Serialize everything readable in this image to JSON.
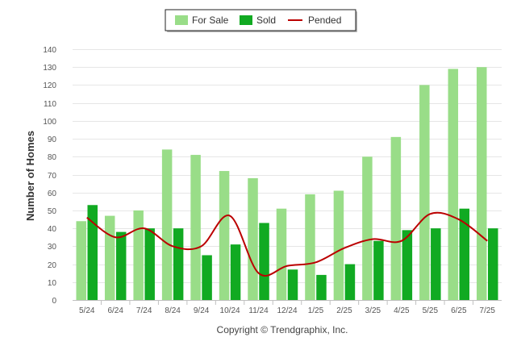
{
  "chart_data": {
    "type": "bar",
    "categories": [
      "5/24",
      "6/24",
      "7/24",
      "8/24",
      "9/24",
      "10/24",
      "11/24",
      "12/24",
      "1/25",
      "2/25",
      "3/25",
      "4/25",
      "5/25",
      "6/25",
      "7/25"
    ],
    "series": [
      {
        "name": "For Sale",
        "type": "bar",
        "color": "#99dd88",
        "values": [
          44,
          47,
          50,
          84,
          81,
          72,
          68,
          51,
          59,
          61,
          80,
          91,
          120,
          129,
          130
        ]
      },
      {
        "name": "Sold",
        "type": "bar",
        "color": "#11aa22",
        "values": [
          53,
          38,
          40,
          40,
          25,
          31,
          43,
          17,
          14,
          20,
          33,
          39,
          40,
          51,
          40
        ]
      },
      {
        "name": "Pended",
        "type": "line",
        "color": "#bb0000",
        "values": [
          46,
          35,
          40,
          30,
          30,
          47,
          15,
          19,
          21,
          29,
          34,
          33,
          48,
          45,
          33
        ]
      }
    ],
    "ylabel": "Number of Homes",
    "ylim": [
      0,
      140
    ],
    "yticks": [
      "0",
      "10",
      "20",
      "30",
      "40",
      "50",
      "60",
      "70",
      "80",
      "90",
      "100",
      "110",
      "120",
      "130",
      "140"
    ],
    "grid": true,
    "legend": "top-center",
    "credit": "Copyright © Trendgraphix, Inc."
  }
}
